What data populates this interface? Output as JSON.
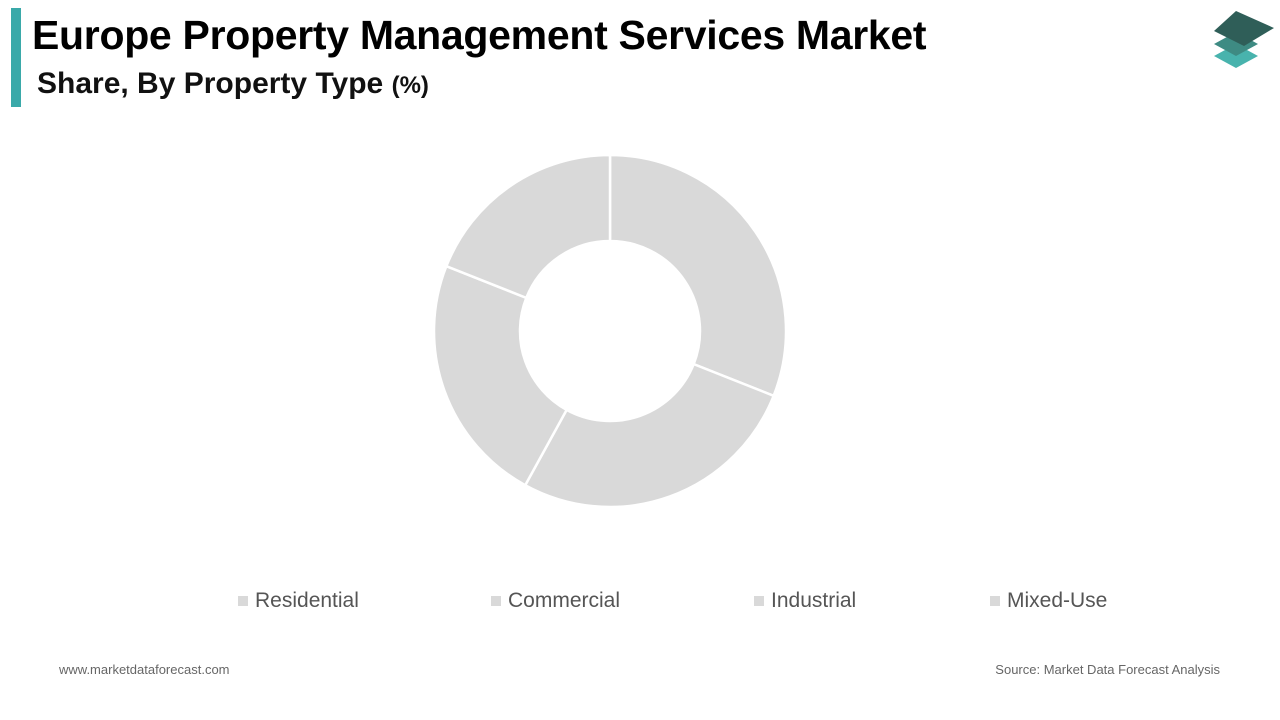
{
  "header": {
    "title": "Europe Property Management Services Market",
    "subtitle": "Share, By Property Type",
    "unit": "(%)"
  },
  "colors": {
    "accent": "#3aa9a9",
    "slice": "#d9d9d9",
    "slice_stroke": "#ffffff",
    "legend_swatch": "#d9d9d9",
    "logo_top": "#2f5e58",
    "logo_mid": "#3e8b83",
    "logo_bottom": "#48b3ad"
  },
  "logo": {
    "icon": "stacked-layers-icon"
  },
  "chart_data": {
    "type": "pie",
    "donut": true,
    "categories": [
      "Residential",
      "Commercial",
      "Industrial",
      "Mixed-Use"
    ],
    "values": [
      31,
      27,
      23,
      19
    ],
    "legend_position": "bottom"
  },
  "footer": {
    "website": "www.marketdataforecast.com",
    "source": "Source: Market Data Forecast Analysis"
  }
}
